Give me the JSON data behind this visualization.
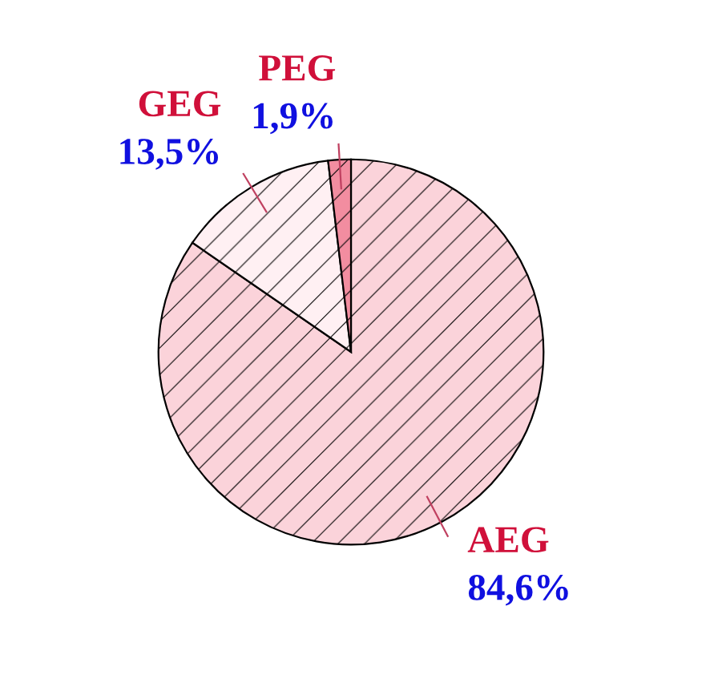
{
  "chart_data": {
    "type": "pie",
    "categories": [
      "AEG",
      "GEG",
      "PEG"
    ],
    "values": [
      84.6,
      13.5,
      1.9
    ],
    "colors": [
      "#fbd3da",
      "#fff0f3",
      "#f28da0"
    ],
    "value_labels": [
      "84,6%",
      "13,5%",
      "1,9%"
    ]
  }
}
